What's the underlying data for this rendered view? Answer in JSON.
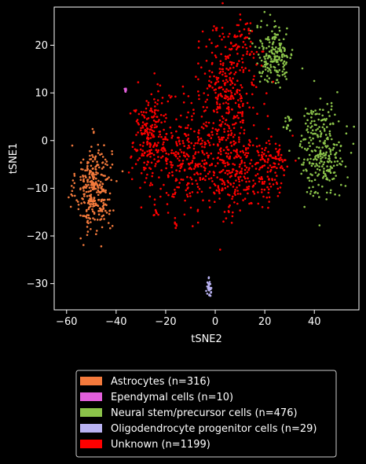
{
  "chart_data": {
    "type": "scatter",
    "xlabel": "tSNE2",
    "ylabel": "tSNE1",
    "xlim": [
      -65,
      58
    ],
    "ylim": [
      -35.5,
      28
    ],
    "xticks": [
      -60,
      -40,
      -20,
      0,
      20,
      40
    ],
    "yticks": [
      -30,
      -20,
      -10,
      0,
      10,
      20
    ],
    "grid": false,
    "legend_position": "bottom-center, below plot",
    "background": "#000000",
    "foreground": "#ffffff",
    "series": [
      {
        "name": "Astrocytes (n=316)",
        "color": "#f47a3c",
        "count": 316,
        "clusters": [
          {
            "cx": -49,
            "cy": -10,
            "sx": 3.6,
            "sy": 4.6,
            "n": 316
          }
        ]
      },
      {
        "name": "Ependymal cells (n=10)",
        "color": "#e35fdc",
        "count": 10,
        "clusters": [
          {
            "cx": -36.2,
            "cy": 10.6,
            "sx": 0.15,
            "sy": 0.35,
            "n": 10
          }
        ]
      },
      {
        "name": "Neural stem/precursor cells (n=476)",
        "color": "#8bc34a",
        "count": 476,
        "clusters": [
          {
            "cx": 24,
            "cy": 18,
            "sx": 3.8,
            "sy": 3.2,
            "n": 190
          },
          {
            "cx": 43,
            "cy": -2,
            "sx": 4.5,
            "sy": 4.8,
            "n": 270
          },
          {
            "cx": 30,
            "cy": 4.8,
            "sx": 1.2,
            "sy": 0.3,
            "n": 6
          },
          {
            "cx": 29,
            "cy": 3.5,
            "sx": 1.0,
            "sy": 0.8,
            "n": 10
          }
        ]
      },
      {
        "name": "Oligodendrocyte progenitor cells (n=29)",
        "color": "#b9b2f2",
        "count": 29,
        "clusters": [
          {
            "cx": -2.5,
            "cy": -31,
            "sx": 0.5,
            "sy": 0.9,
            "n": 29
          }
        ]
      },
      {
        "name": "Unknown (n=1199)",
        "color": "#ff0000",
        "count": 1199,
        "clusters": [
          {
            "cx": -26,
            "cy": 0,
            "sx": 4.0,
            "sy": 5.0,
            "n": 230
          },
          {
            "cx": -12,
            "cy": -3,
            "sx": 5.0,
            "sy": 5.5,
            "n": 200
          },
          {
            "cx": 5,
            "cy": 10,
            "sx": 6.0,
            "sy": 6.0,
            "n": 300
          },
          {
            "cx": 6,
            "cy": -6,
            "sx": 8.0,
            "sy": 5.0,
            "n": 300
          },
          {
            "cx": 22,
            "cy": -6,
            "sx": 4.0,
            "sy": 4.0,
            "n": 110
          },
          {
            "cx": 11,
            "cy": 21,
            "sx": 3.0,
            "sy": 2.0,
            "n": 40
          },
          {
            "cx": -24,
            "cy": -15,
            "sx": 0.4,
            "sy": 0.5,
            "n": 6
          },
          {
            "cx": -16,
            "cy": -18,
            "sx": 0.4,
            "sy": 0.5,
            "n": 6
          },
          {
            "cx": 0,
            "cy": 23.5,
            "sx": 0.8,
            "sy": 0.3,
            "n": 6
          },
          {
            "cx": 2,
            "cy": -23,
            "sx": 0.1,
            "sy": 0.1,
            "n": 1
          }
        ]
      }
    ]
  }
}
